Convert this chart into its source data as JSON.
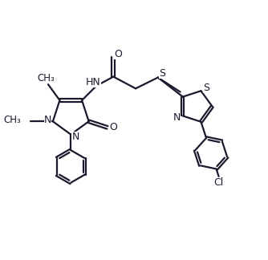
{
  "bg_color": "#ffffff",
  "line_color": "#1a1a2e",
  "line_width": 1.6,
  "fig_width": 3.34,
  "fig_height": 3.24,
  "dpi": 100,
  "xlim": [
    0,
    10
  ],
  "ylim": [
    0,
    9.7
  ]
}
